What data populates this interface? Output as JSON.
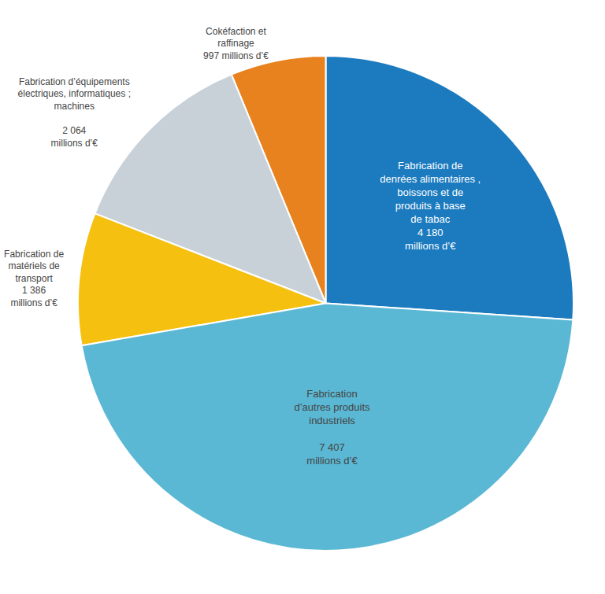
{
  "chart_data": {
    "type": "pie",
    "values": [
      4180,
      997,
      2064,
      1386,
      7407
    ],
    "colors": [
      "#1c7bbf",
      "#e8821e",
      "#c8d0d8",
      "#f5c010",
      "#5bb8d4"
    ],
    "labels": [
      "Fabrication de\ndenrées alimentaires ,\nboissons et de\nproduits à base\nde tabac\n4 180\nmillions d’€",
      "Cokéfaction et\nraffinage\n997 millions d’€",
      "Fabrication d’équipements\nélectriques, informatiques ;\nmachines\n\n2 064\nmillions d’€",
      "Fabrication de\nmatériels de\ntransport\n1 386\nmillions d’€",
      "Fabrication\nd’autres produits\nindustriels\n\n7 407\nmillions d’€"
    ]
  }
}
